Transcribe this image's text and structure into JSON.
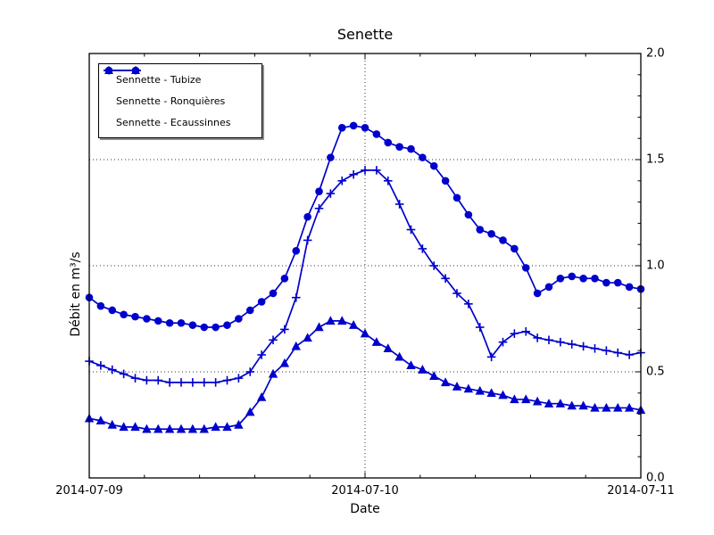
{
  "figure": {
    "title": "Senette",
    "xlabel": "Date",
    "ylabel": "Débit en m³/s"
  },
  "axes": {
    "x_tick_labels": [
      "2014-07-09",
      "2014-07-10",
      "2014-07-11"
    ],
    "y_tick_labels": [
      "0.0",
      "0.5",
      "1.0",
      "1.5",
      "2.0"
    ]
  },
  "legend": {
    "items": [
      {
        "label": "Sennette - Tubize",
        "marker": "circle"
      },
      {
        "label": "Sennette - Ronquières",
        "marker": "plus"
      },
      {
        "label": "Sennette - Ecaussinnes",
        "marker": "triangle"
      }
    ]
  },
  "chart_data": {
    "type": "line",
    "title": "Senette",
    "xlabel": "Date",
    "ylabel": "Débit en m³/s",
    "line_color": "#0000cc",
    "ylim": [
      0.0,
      2.0
    ],
    "xlim_hours": [
      0,
      48
    ],
    "x_unit": "hours since 2014-07-09 00:00",
    "x_major_tick_hours": [
      0,
      24,
      48
    ],
    "x_major_tick_labels": [
      "2014-07-09",
      "2014-07-10",
      "2014-07-11"
    ],
    "y_major_ticks": [
      0.0,
      0.5,
      1.0,
      1.5,
      2.0
    ],
    "y_minor_tick_step": 0.1,
    "x_minor_subdivisions_per_day": 5,
    "grid": {
      "style": "dotted",
      "y_lines": [
        0.5,
        1.0,
        1.5
      ],
      "x_lines_hours": [
        24
      ]
    },
    "legend_position": "upper left",
    "y_tick_label_side": "right",
    "x": [
      0,
      1,
      2,
      3,
      4,
      5,
      6,
      7,
      8,
      9,
      10,
      11,
      12,
      13,
      14,
      15,
      16,
      17,
      18,
      19,
      20,
      21,
      22,
      23,
      24,
      25,
      26,
      27,
      28,
      29,
      30,
      31,
      32,
      33,
      34,
      35,
      36,
      37,
      38,
      39,
      40,
      41,
      42,
      43,
      44,
      45,
      46,
      47,
      48
    ],
    "series": [
      {
        "name": "Sennette - Tubize",
        "marker": "circle",
        "color": "#0000cc",
        "values": [
          0.85,
          0.81,
          0.79,
          0.77,
          0.76,
          0.75,
          0.74,
          0.73,
          0.73,
          0.72,
          0.71,
          0.71,
          0.72,
          0.75,
          0.79,
          0.83,
          0.87,
          0.94,
          1.07,
          1.23,
          1.35,
          1.51,
          1.65,
          1.66,
          1.65,
          1.62,
          1.58,
          1.56,
          1.55,
          1.51,
          1.47,
          1.4,
          1.32,
          1.24,
          1.17,
          1.15,
          1.12,
          1.08,
          0.99,
          0.87,
          0.9,
          0.94,
          0.95,
          0.94,
          0.94,
          0.92,
          0.92,
          0.9,
          0.89
        ]
      },
      {
        "name": "Sennette - Ronquières",
        "marker": "plus",
        "color": "#0000cc",
        "values": [
          0.55,
          0.53,
          0.51,
          0.49,
          0.47,
          0.46,
          0.46,
          0.45,
          0.45,
          0.45,
          0.45,
          0.45,
          0.46,
          0.47,
          0.5,
          0.58,
          0.65,
          0.7,
          0.85,
          1.12,
          1.27,
          1.34,
          1.4,
          1.43,
          1.45,
          1.45,
          1.4,
          1.29,
          1.17,
          1.08,
          1.0,
          0.94,
          0.87,
          0.82,
          0.71,
          0.57,
          0.64,
          0.68,
          0.69,
          0.66,
          0.65,
          0.64,
          0.63,
          0.62,
          0.61,
          0.6,
          0.59,
          0.58,
          0.59
        ]
      },
      {
        "name": "Sennette - Ecaussinnes",
        "marker": "triangle",
        "color": "#0000cc",
        "values": [
          0.28,
          0.27,
          0.25,
          0.24,
          0.24,
          0.23,
          0.23,
          0.23,
          0.23,
          0.23,
          0.23,
          0.24,
          0.24,
          0.25,
          0.31,
          0.38,
          0.49,
          0.54,
          0.62,
          0.66,
          0.71,
          0.74,
          0.74,
          0.72,
          0.68,
          0.64,
          0.61,
          0.57,
          0.53,
          0.51,
          0.48,
          0.45,
          0.43,
          0.42,
          0.41,
          0.4,
          0.39,
          0.37,
          0.37,
          0.36,
          0.35,
          0.35,
          0.34,
          0.34,
          0.33,
          0.33,
          0.33,
          0.33,
          0.32
        ]
      }
    ]
  }
}
